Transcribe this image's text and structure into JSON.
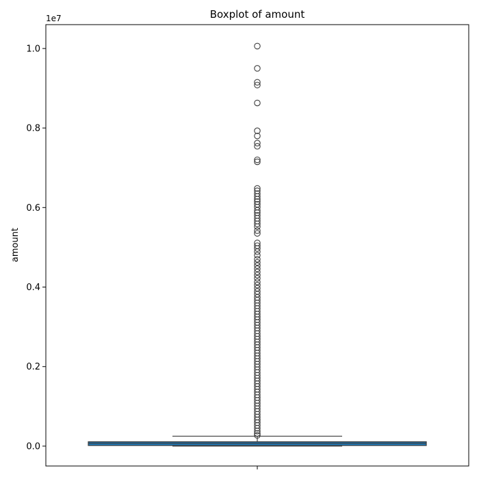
{
  "chart_data": {
    "type": "boxplot",
    "title": "Boxplot of amount",
    "ylabel": "amount",
    "xlabel": "",
    "offset_label": "1e7",
    "y_ticks": [
      "0.0",
      "0.2",
      "0.4",
      "0.6",
      "0.8",
      "1.0"
    ],
    "y_tick_values": [
      0,
      2000000,
      4000000,
      6000000,
      8000000,
      10000000
    ],
    "ylim": [
      -500000,
      10600000
    ],
    "grid": false,
    "colors": {
      "box": "#1f77b4",
      "line": "#3d3d3d"
    },
    "box": {
      "min": 0,
      "q1": 15000,
      "median": 75000,
      "q3": 110000,
      "whisker_low": 0,
      "whisker_high": 250000
    },
    "outliers": [
      10060000,
      9500000,
      9150000,
      9080000,
      8630000,
      7930000,
      7800000,
      7620000,
      7540000,
      7200000,
      7150000,
      6480000,
      6420000,
      6350000,
      6280000,
      6210000,
      6150000,
      6080000,
      6010000,
      5930000,
      5870000,
      5800000,
      5730000,
      5660000,
      5590000,
      5520000,
      5420000,
      5350000,
      5110000,
      5040000,
      4970000,
      4890000,
      4800000,
      4700000,
      4620000,
      4540000,
      4460000,
      4380000,
      4300000,
      4220000,
      4130000,
      4050000,
      3970000,
      3890000,
      3820000,
      3740000,
      3670000,
      3600000,
      3530000,
      3460000,
      3390000,
      3320000,
      3250000,
      3180000,
      3110000,
      3040000,
      2970000,
      2900000,
      2830000,
      2760000,
      2690000,
      2620000,
      2550000,
      2480000,
      2410000,
      2340000,
      2270000,
      2200000,
      2130000,
      2060000,
      1990000,
      1920000,
      1850000,
      1780000,
      1710000,
      1640000,
      1570000,
      1500000,
      1430000,
      1360000,
      1290000,
      1220000,
      1150000,
      1080000,
      1010000,
      940000,
      870000,
      800000,
      730000,
      660000,
      590000,
      520000,
      450000,
      380000,
      320000,
      270000
    ]
  }
}
